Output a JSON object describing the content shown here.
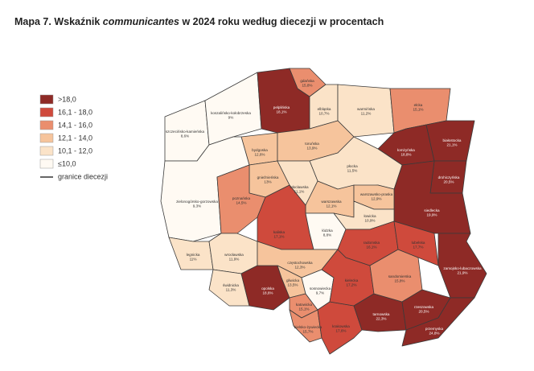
{
  "title": {
    "before": "Mapa 7. Wskaźnik",
    "italic": "communicantes",
    "after": "w 2024 roku według diecezji w procentach"
  },
  "legend": {
    "classes": [
      {
        "label": ">18,0",
        "min": 18.0,
        "color": "#8e2a26"
      },
      {
        "label": "16,1 - 18,0",
        "min": 16.1,
        "max": 18.0,
        "color": "#cf4a3c"
      },
      {
        "label": "14,1 - 16,0",
        "min": 14.1,
        "max": 16.0,
        "color": "#ea8e6e"
      },
      {
        "label": "12,1 - 14,0",
        "min": 12.1,
        "max": 14.0,
        "color": "#f6c49c"
      },
      {
        "label": "10,1 - 12,0",
        "min": 10.1,
        "max": 12.0,
        "color": "#fbe3c8"
      },
      {
        "label": "≤10,0",
        "max": 10.0,
        "color": "#fffaf3"
      }
    ],
    "boundary_label": "granice diecezji"
  },
  "regions": [
    {
      "name": "szczecińsko-kamieńska",
      "value": 8.6,
      "value_label": "8,6%"
    },
    {
      "name": "koszalińsko-kołobrzeska",
      "value": 9,
      "value_label": "9%"
    },
    {
      "name": "pelplińska",
      "value": 18.1,
      "value_label": "18,1%"
    },
    {
      "name": "gdańska",
      "value": 15.8,
      "value_label": "15,8%"
    },
    {
      "name": "elbląska",
      "value": 10.7,
      "value_label": "10,7%"
    },
    {
      "name": "warmińska",
      "value": 11.2,
      "value_label": "11,2%"
    },
    {
      "name": "ełcka",
      "value": 15.1,
      "value_label": "15,1%"
    },
    {
      "name": "łomżyńska",
      "value": 18.8,
      "value_label": "18,8%"
    },
    {
      "name": "białostocka",
      "value": 21.1,
      "value_label": "21,1%"
    },
    {
      "name": "drohiczyńska",
      "value": 20.5,
      "value_label": "20,5%"
    },
    {
      "name": "siedlecka",
      "value": 19.9,
      "value_label": "19,9%"
    },
    {
      "name": "bydgoska",
      "value": 12.6,
      "value_label": "12,6%"
    },
    {
      "name": "toruńska",
      "value": 13.9,
      "value_label": "13,9%"
    },
    {
      "name": "płocka",
      "value": 11.5,
      "value_label": "11,5%"
    },
    {
      "name": "gnieźnieńska",
      "value": 13,
      "value_label": "13%"
    },
    {
      "name": "włocławska",
      "value": 11.1,
      "value_label": "11,1%"
    },
    {
      "name": "warszawska",
      "value": 12.1,
      "value_label": "12,1%"
    },
    {
      "name": "warszawsko-praska",
      "value": 12.9,
      "value_label": "12,9%"
    },
    {
      "name": "łowicka",
      "value": 10.9,
      "value_label": "10,9%"
    },
    {
      "name": "zielonogórsko-gorzowska",
      "value": 9.3,
      "value_label": "9,3%"
    },
    {
      "name": "poznańska",
      "value": 14.5,
      "value_label": "14,5%"
    },
    {
      "name": "kaliska",
      "value": 17.1,
      "value_label": "17,1%"
    },
    {
      "name": "łódzka",
      "value": 8.8,
      "value_label": "8,8%"
    },
    {
      "name": "legnicka",
      "value": 11,
      "value_label": "11%"
    },
    {
      "name": "wrocławska",
      "value": 11.9,
      "value_label": "11,9%"
    },
    {
      "name": "świdnicka",
      "value": 11.3,
      "value_label": "11,3%"
    },
    {
      "name": "opolska",
      "value": 18.6,
      "value_label": "18,6%"
    },
    {
      "name": "częstochowska",
      "value": 12.3,
      "value_label": "12,3%"
    },
    {
      "name": "gliwicka",
      "value": 13.5,
      "value_label": "13,5%"
    },
    {
      "name": "katowicka",
      "value": 15.1,
      "value_label": "15,1%"
    },
    {
      "name": "sosnowiecka",
      "value": 9.7,
      "value_label": "9,7%"
    },
    {
      "name": "bielsko-żywiecka",
      "value": 15.7,
      "value_label": "15,7%"
    },
    {
      "name": "krakowska",
      "value": 17.6,
      "value_label": "17,6%"
    },
    {
      "name": "kielecka",
      "value": 17.2,
      "value_label": "17,2%"
    },
    {
      "name": "radomska",
      "value": 16.1,
      "value_label": "16,1%"
    },
    {
      "name": "tarnowska",
      "value": 22.3,
      "value_label": "22,3%"
    },
    {
      "name": "sandomierska",
      "value": 15.8,
      "value_label": "15,8%"
    },
    {
      "name": "lubelska",
      "value": 17.7,
      "value_label": "17,7%"
    },
    {
      "name": "zamojsko-lubaczowska",
      "value": 21.9,
      "value_label": "21,9%"
    },
    {
      "name": "rzeszowska",
      "value": 20.5,
      "value_label": "20,5%"
    },
    {
      "name": "przemyska",
      "value": 24.8,
      "value_label": "24,8%"
    }
  ]
}
